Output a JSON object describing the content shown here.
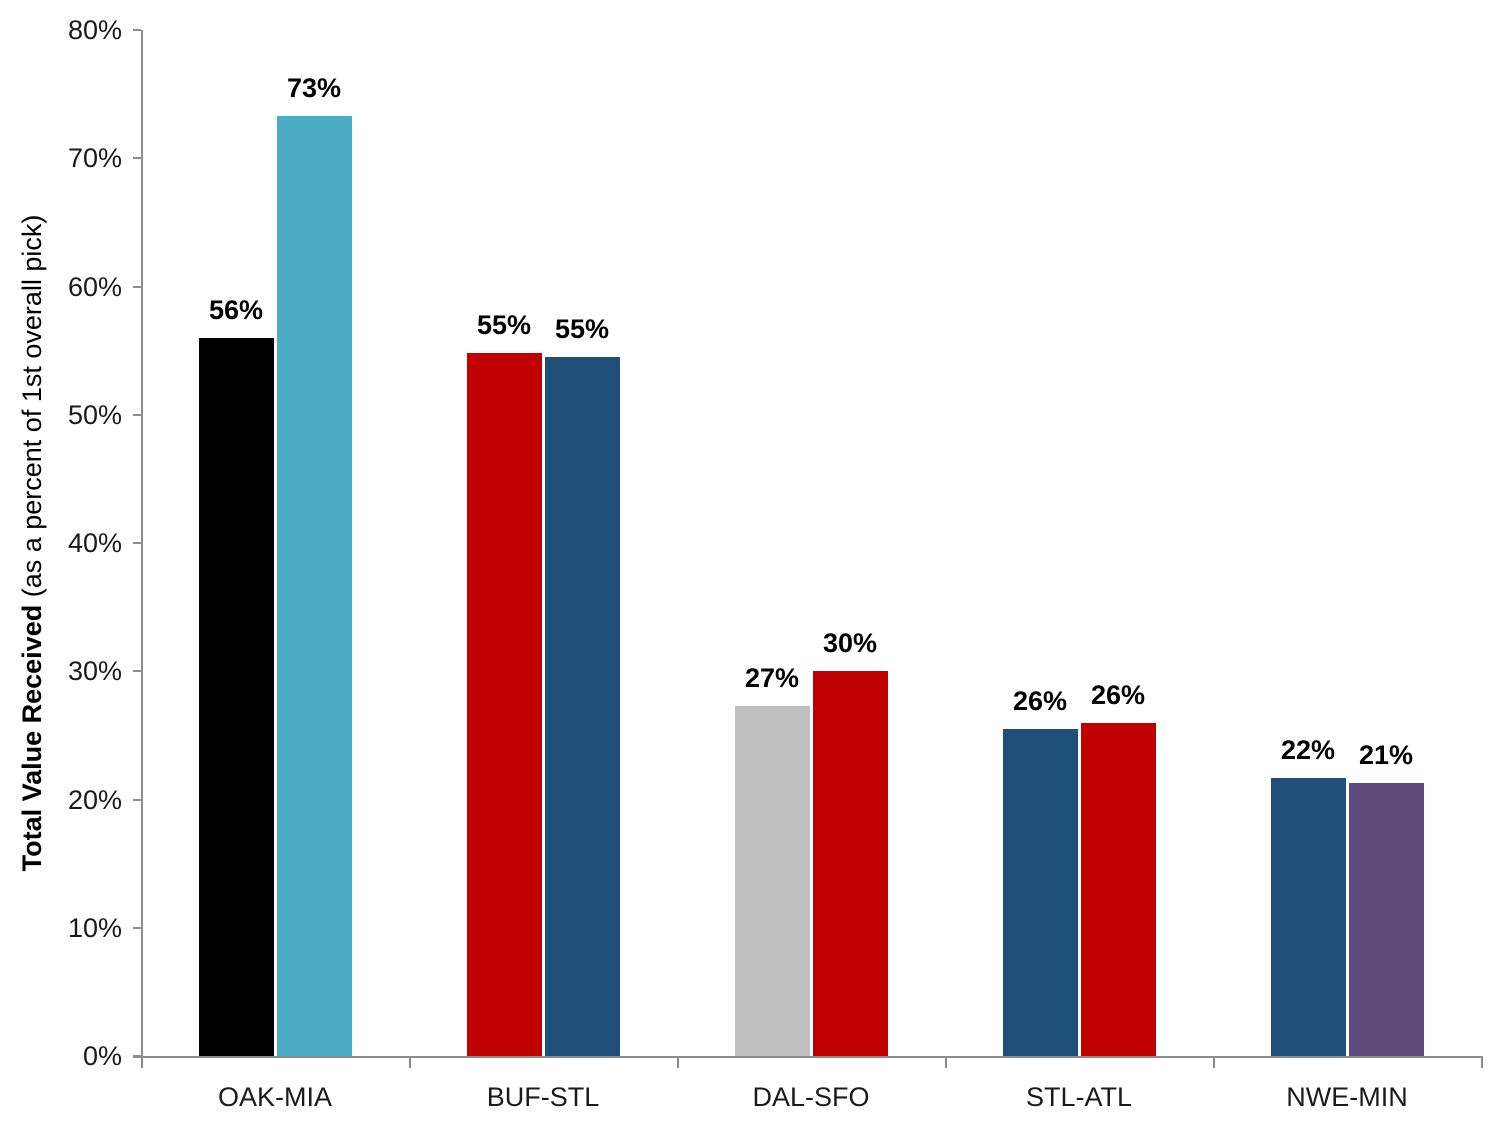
{
  "chart_data": {
    "type": "bar",
    "title": "",
    "ylabel_bold": "Total Value Received",
    "ylabel_rest": " (as a percent of 1st overall pick)",
    "xlabel": "",
    "ylim": [
      0,
      80
    ],
    "ytick_step": 10,
    "yticks": [
      "0%",
      "10%",
      "20%",
      "30%",
      "40%",
      "50%",
      "60%",
      "70%",
      "80%"
    ],
    "grid": false,
    "legend_position": "none",
    "axis_color": "#8C8C8C",
    "tick_label_color": "#1a1a1a",
    "data_label_color": "#000000",
    "categories": [
      "OAK-MIA",
      "BUF-STL",
      "DAL-SFO",
      "STL-ATL",
      "NWE-MIN"
    ],
    "groups": [
      {
        "category": "OAK-MIA",
        "bars": [
          {
            "value": 56.0,
            "label": "56%",
            "color": "#000000"
          },
          {
            "value": 73.3,
            "label": "73%",
            "color": "#4BACC6"
          }
        ]
      },
      {
        "category": "BUF-STL",
        "bars": [
          {
            "value": 54.8,
            "label": "55%",
            "color": "#C00000"
          },
          {
            "value": 54.5,
            "label": "55%",
            "color": "#1F4E79"
          }
        ]
      },
      {
        "category": "DAL-SFO",
        "bars": [
          {
            "value": 27.3,
            "label": "27%",
            "color": "#BFBFBF"
          },
          {
            "value": 30.0,
            "label": "30%",
            "color": "#C00000"
          }
        ]
      },
      {
        "category": "STL-ATL",
        "bars": [
          {
            "value": 25.5,
            "label": "26%",
            "color": "#1F4E79"
          },
          {
            "value": 26.0,
            "label": "26%",
            "color": "#C00000"
          }
        ]
      },
      {
        "category": "NWE-MIN",
        "bars": [
          {
            "value": 21.7,
            "label": "22%",
            "color": "#1F4E79"
          },
          {
            "value": 21.3,
            "label": "21%",
            "color": "#5F4A7B"
          }
        ]
      }
    ]
  }
}
